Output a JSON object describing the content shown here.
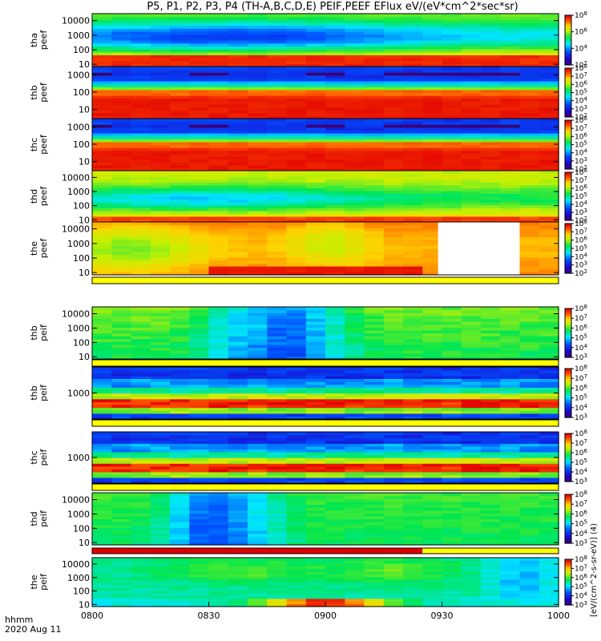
{
  "title": "P5, P1, P2, P3, P4 (TH-A,B,C,D,E) PEIF,PEEF EFlux eV/(eV*cm^2*sec*sr)",
  "xlabel_line1": "hhmm",
  "xlabel_line2": "2020 Aug 11",
  "chart_data": {
    "type": "heatmap",
    "x_ticks": [
      "0800",
      "0830",
      "0900",
      "0930",
      "1000"
    ],
    "x_range_minutes": [
      480,
      600
    ],
    "colorbar_label": "[eV/(cm^2-s-sr-eV)] (4)",
    "panels": [
      {
        "id": "tha-peef",
        "labels": [
          "tha",
          "peef"
        ],
        "yticks": [
          "10000",
          "1000",
          "100",
          "10"
        ],
        "ylim": [
          7,
          30000
        ],
        "cbar_ticks": [
          "10^8",
          "10^6",
          "10^4",
          "10^2"
        ],
        "cbar_range": [
          2,
          8
        ],
        "profile": "tha_e",
        "flag": null
      },
      {
        "id": "thb-peef",
        "labels": [
          "thb",
          "peef"
        ],
        "yticks": [
          "1000",
          "100",
          "10"
        ],
        "ylim": [
          3,
          3000
        ],
        "cbar_ticks": [
          "10^8",
          "10^7",
          "10^6",
          "10^5",
          "10^4",
          "10^3",
          "10^2"
        ],
        "cbar_range": [
          2,
          8
        ],
        "profile": "thbc_e",
        "flag": null
      },
      {
        "id": "thc-peef",
        "labels": [
          "thc",
          "peef"
        ],
        "yticks": [
          "1000",
          "100",
          "10"
        ],
        "ylim": [
          3,
          3000
        ],
        "cbar_ticks": [
          "10^8",
          "10^7",
          "10^6",
          "10^5",
          "10^4",
          "10^3",
          "10^2"
        ],
        "cbar_range": [
          2,
          8
        ],
        "profile": "thbc_e",
        "flag": null
      },
      {
        "id": "thd-peef",
        "labels": [
          "thd",
          "peef"
        ],
        "yticks": [
          "10000",
          "1000",
          "100",
          "10"
        ],
        "ylim": [
          7,
          30000
        ],
        "cbar_ticks": [
          "10^8",
          "10^7",
          "10^6",
          "10^5",
          "10^4",
          "10^3",
          "10^2"
        ],
        "cbar_range": [
          2,
          8
        ],
        "profile": "thd_e",
        "flag": null
      },
      {
        "id": "the-peef",
        "labels": [
          "the",
          "peef"
        ],
        "yticks": [
          "10000",
          "1000",
          "100",
          "10"
        ],
        "ylim": [
          7,
          30000
        ],
        "cbar_ticks": [
          "10^8",
          "10^7",
          "10^6",
          "10^5",
          "10^4",
          "10^3",
          "10^2"
        ],
        "cbar_range": [
          2,
          8
        ],
        "profile": "the_e",
        "flag": {
          "segments": [
            {
              "from": 480,
              "to": 600,
              "color": "#ffff00"
            }
          ]
        }
      },
      {
        "id": "thb-peif",
        "labels": [
          "thb",
          "peif"
        ],
        "yticks": [
          "10000",
          "1000",
          "100",
          "10"
        ],
        "ylim": [
          7,
          30000
        ],
        "cbar_ticks": [
          "10^8",
          "10^7",
          "10^6",
          "10^5",
          "10^4",
          "10^3"
        ],
        "cbar_range": [
          3,
          8
        ],
        "profile": "thb_i",
        "flag": {
          "segments": [
            {
              "from": 480,
              "to": 600,
              "color": "#ffff00"
            }
          ]
        }
      },
      {
        "id": "thb-peif-2",
        "labels": [
          "thb",
          "peif"
        ],
        "yticks": [
          "1000"
        ],
        "ylim": [
          100,
          10000
        ],
        "cbar_ticks": [
          "10^8",
          "10^7",
          "10^6",
          "10^5",
          "10^4",
          "10^3"
        ],
        "cbar_range": [
          3,
          8
        ],
        "profile": "thbc_i",
        "flag": {
          "segments": [
            {
              "from": 480,
              "to": 600,
              "color": "#ffff00"
            }
          ]
        }
      },
      {
        "id": "thc-peif",
        "labels": [
          "thc",
          "peif"
        ],
        "yticks": [
          "1000"
        ],
        "ylim": [
          100,
          10000
        ],
        "cbar_ticks": [
          "10^8",
          "10^7",
          "10^6",
          "10^5",
          "10^4",
          "10^3"
        ],
        "cbar_range": [
          3,
          8
        ],
        "profile": "thbc_i",
        "flag": {
          "segments": [
            {
              "from": 480,
              "to": 600,
              "color": "#ffff00"
            }
          ]
        }
      },
      {
        "id": "thd-peif",
        "labels": [
          "thd",
          "peif"
        ],
        "yticks": [
          "10000",
          "1000",
          "100",
          "10"
        ],
        "ylim": [
          7,
          30000
        ],
        "cbar_ticks": [
          "10^8",
          "10^7",
          "10^6",
          "10^5",
          "10^4",
          "10^3"
        ],
        "cbar_range": [
          3,
          8
        ],
        "profile": "thd_i",
        "flag": {
          "segments": [
            {
              "from": 480,
              "to": 565,
              "color": "#e00000"
            },
            {
              "from": 565,
              "to": 600,
              "color": "#ffff00"
            }
          ]
        }
      },
      {
        "id": "the-peif",
        "labels": [
          "the",
          "peif"
        ],
        "yticks": [
          "10000",
          "1000",
          "100",
          "10"
        ],
        "ylim": [
          7,
          30000
        ],
        "cbar_ticks": [
          "10^8",
          "10^7",
          "10^6",
          "10^5",
          "10^4",
          "10^3"
        ],
        "cbar_range": [
          3,
          8
        ],
        "profile": "the_i",
        "flag": null
      }
    ]
  }
}
